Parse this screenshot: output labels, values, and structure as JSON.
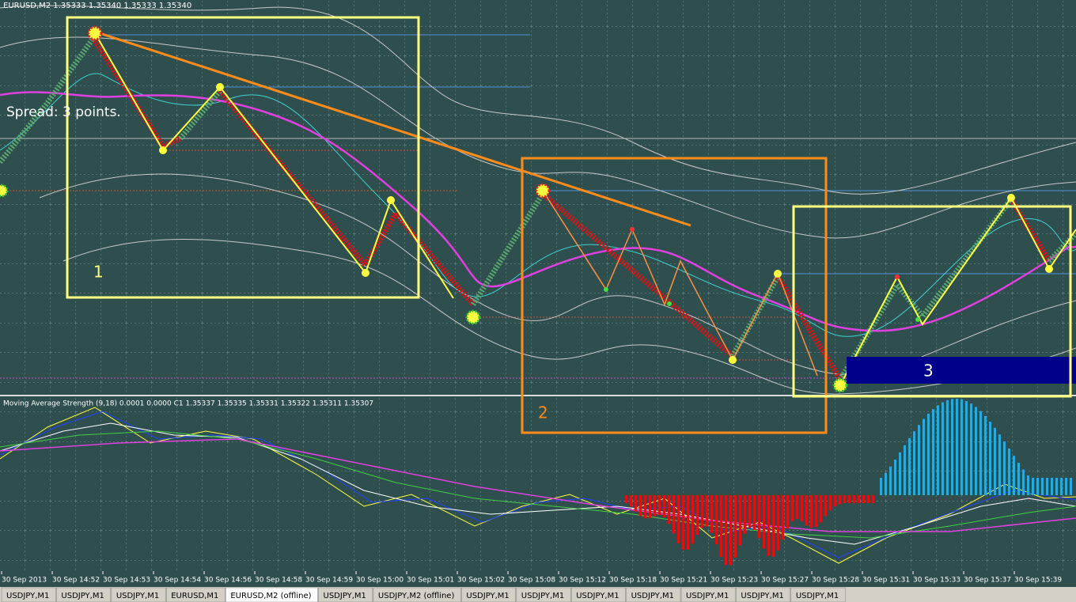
{
  "chart_window": {
    "header": "EURUSD,M2  1.35333 1.35340 1.35333 1.35340",
    "spread": "Spread: 3 points.",
    "box_labels": [
      "1",
      "2",
      "3"
    ],
    "indicator_header": "Moving Average Strength (9,18) 0.0001 0.0000  C1 1.35337 1.35335 1.35331 1.35322 1.35311 1.35307",
    "time_labels": [
      "30 Sep 2013",
      "30 Sep 14:52",
      "30 Sep 14:53",
      "30 Sep 14:54",
      "30 Sep 14:56",
      "30 Sep 14:58",
      "30 Sep 14:59",
      "30 Sep 15:00",
      "30 Sep 15:01",
      "30 Sep 15:02",
      "30 Sep 15:08",
      "30 Sep 15:12",
      "30 Sep 15:18",
      "30 Sep 15:21",
      "30 Sep 15:23",
      "30 Sep 15:27",
      "30 Sep 15:28",
      "30 Sep 15:31",
      "30 Sep 15:33",
      "30 Sep 15:37",
      "30 Sep 15:39"
    ]
  },
  "tabs": {
    "items": [
      "USDJPY,M1",
      "USDJPY,M1",
      "USDJPY,M1",
      "EURUSD,M1",
      "EURUSD,M2 (offline)",
      "USDJPY,M1",
      "USDJPY,M2 (offline)",
      "USDJPY,M1",
      "USDJPY,M1",
      "USDJPY,M1",
      "USDJPY,M1",
      "USDJPY,M1",
      "USDJPY,M1",
      "USDJPY,M1"
    ],
    "active": 4
  }
}
